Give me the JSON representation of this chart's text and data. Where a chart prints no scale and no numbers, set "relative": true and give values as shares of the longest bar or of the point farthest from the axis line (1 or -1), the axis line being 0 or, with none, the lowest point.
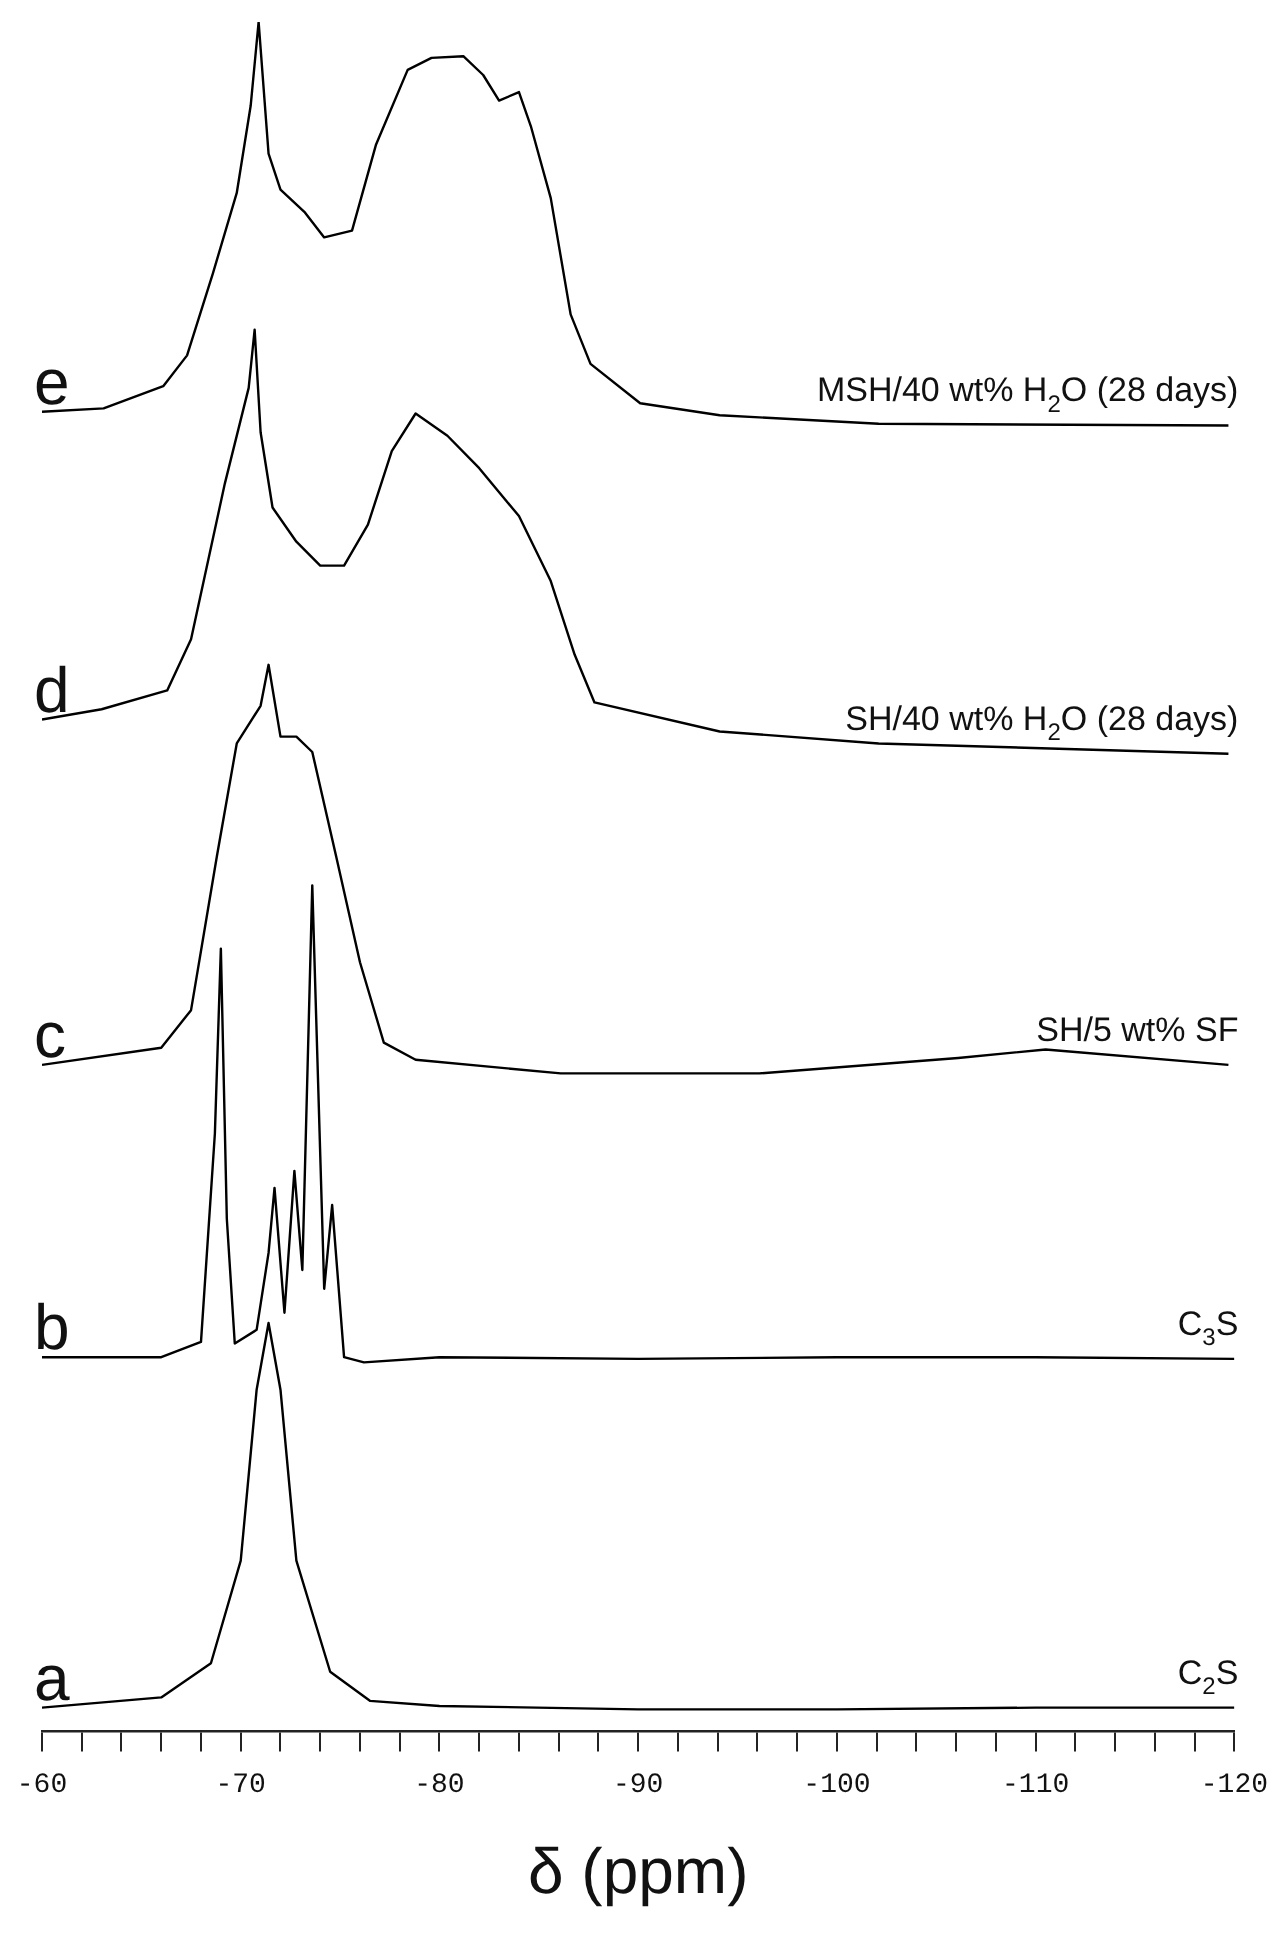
{
  "chart_data": {
    "type": "line",
    "relative": true,
    "xlabel": "δ (ppm)",
    "xlim": [
      -60,
      -120
    ],
    "xticks": [
      -60,
      {
        "value": -62,
        "label": null
      },
      {
        "value": -64,
        "label": null
      },
      {
        "value": -66,
        "label": null
      },
      {
        "value": -68,
        "label": null
      },
      -70,
      {
        "value": -72,
        "label": null
      },
      {
        "value": -74,
        "label": null
      },
      {
        "value": -76,
        "label": null
      },
      {
        "value": -78,
        "label": null
      },
      -80,
      {
        "value": -82,
        "label": null
      },
      {
        "value": -84,
        "label": null
      },
      {
        "value": -86,
        "label": null
      },
      {
        "value": -88,
        "label": null
      },
      -90,
      {
        "value": -92,
        "label": null
      },
      {
        "value": -94,
        "label": null
      },
      {
        "value": -96,
        "label": null
      },
      {
        "value": -98,
        "label": null
      },
      -100,
      {
        "value": -102,
        "label": null
      },
      {
        "value": -104,
        "label": null
      },
      {
        "value": -106,
        "label": null
      },
      {
        "value": -108,
        "label": null
      },
      -110,
      {
        "value": -112,
        "label": null
      },
      {
        "value": -114,
        "label": null
      },
      {
        "value": -116,
        "label": null
      },
      {
        "value": -118,
        "label": null
      },
      -120
    ],
    "grid": false,
    "legend": false,
    "marker": "none",
    "line_style": "solid",
    "series": [
      {
        "name": "C$_{2}$S",
        "color": "#000000",
        "x": [
          -60,
          -66,
          -68.5,
          -70,
          -70.8,
          -71.4,
          -72,
          -72.8,
          -74.5,
          -76.5,
          -80,
          -90,
          -100,
          -110,
          -120
        ],
        "values": [
          0.014,
          0.02,
          0.04,
          0.1,
          0.2,
          0.239,
          0.2,
          0.1,
          0.035,
          0.018,
          0.015,
          0.013,
          0.013,
          0.014,
          0.014
        ]
      },
      {
        "name": "C$_{3}$S",
        "color": "#000000",
        "x": [
          -60,
          -66,
          -68,
          -68.7,
          -69,
          -69.3,
          -69.7,
          -70.8,
          -71.4,
          -71.7,
          -72.2,
          -72.7,
          -73.1,
          -73.6,
          -74.2,
          -74.6,
          -75.2,
          -76.2,
          -80,
          -90,
          -100,
          -110,
          -120
        ],
        "values": [
          0.219,
          0.219,
          0.228,
          0.35,
          0.458,
          0.3,
          0.227,
          0.235,
          0.28,
          0.318,
          0.245,
          0.328,
          0.27,
          0.495,
          0.259,
          0.308,
          0.219,
          0.216,
          0.219,
          0.218,
          0.219,
          0.219,
          0.218
        ]
      },
      {
        "name": "SH/5 wt% SF",
        "color": "#000000",
        "x": [
          -60,
          -66,
          -67.5,
          -68.8,
          -69.8,
          -71,
          -71.4,
          -72,
          -72.8,
          -73.6,
          -74.8,
          -76,
          -77.2,
          -78.8,
          -86.1,
          -96.1,
          -106.1,
          -110.5,
          -119.7
        ],
        "values": [
          0.39,
          0.4,
          0.422,
          0.512,
          0.578,
          0.6,
          0.624,
          0.582,
          0.582,
          0.573,
          0.512,
          0.45,
          0.403,
          0.393,
          0.385,
          0.385,
          0.394,
          0.399,
          0.39
        ]
      },
      {
        "name": "SH/40 wt% H$_{2}$O (28 days)",
        "color": "#000000",
        "x": [
          -60,
          -63,
          -66.3,
          -67.5,
          -69.2,
          -70.4,
          -70.7,
          -71,
          -71.6,
          -72.8,
          -74,
          -75.2,
          -76.4,
          -77.6,
          -78.8,
          -80.4,
          -82,
          -84,
          -85.6,
          -86.8,
          -87.8,
          -94.1,
          -102.1,
          -119.7
        ],
        "values": [
          0.592,
          0.598,
          0.609,
          0.639,
          0.73,
          0.786,
          0.82,
          0.76,
          0.716,
          0.696,
          0.682,
          0.682,
          0.706,
          0.749,
          0.771,
          0.758,
          0.739,
          0.711,
          0.673,
          0.63,
          0.602,
          0.585,
          0.578,
          0.572
        ]
      },
      {
        "name": "MSH/40 wt% H$_{2}$O (28 days)",
        "color": "#000000",
        "x": [
          -60,
          -63.1,
          -66.1,
          -67.3,
          -68.6,
          -69.8,
          -70.5,
          -70.9,
          -71.4,
          -72,
          -73.2,
          -74.2,
          -75.6,
          -76.8,
          -78.4,
          -79.6,
          -81.2,
          -82.2,
          -83,
          -84,
          -84.6,
          -85.6,
          -86.6,
          -87.6,
          -90.1,
          -94.1,
          -102.1,
          -119.7
        ],
        "values": [
          0.772,
          0.774,
          0.787,
          0.805,
          0.853,
          0.9,
          0.951,
          1,
          0.923,
          0.902,
          0.889,
          0.874,
          0.878,
          0.928,
          0.972,
          0.979,
          0.98,
          0.969,
          0.954,
          0.959,
          0.939,
          0.897,
          0.829,
          0.8,
          0.777,
          0.77,
          0.765,
          0.764
        ]
      }
    ],
    "annotations": [
      "a",
      "b",
      "c",
      "d",
      "e"
    ]
  }
}
